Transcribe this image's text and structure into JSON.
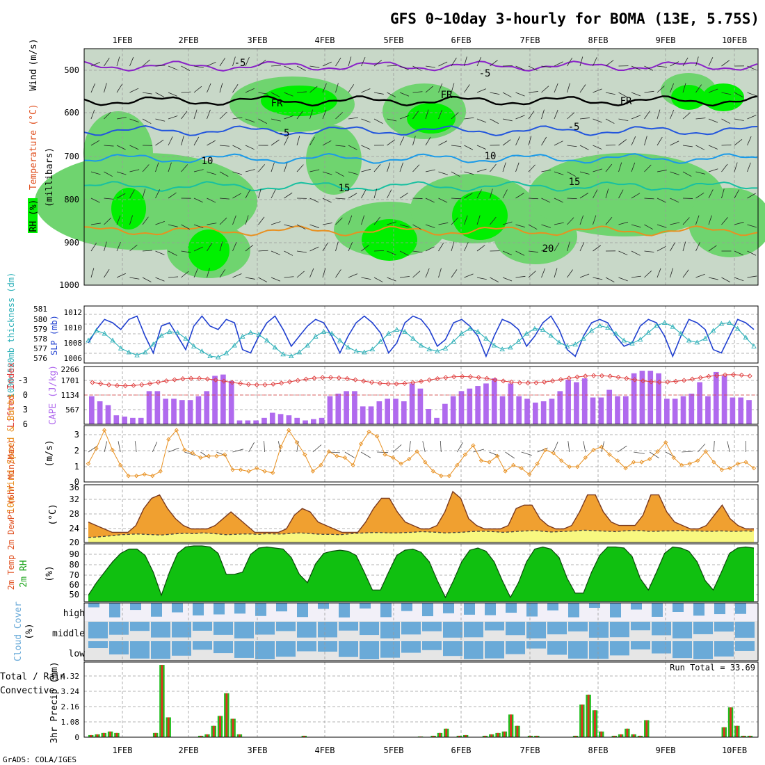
{
  "title": "GFS 0~10day 3-hourly for BOMA (13E, 5.75S)",
  "footer": "GrADS: COLA/IGES",
  "date_labels": [
    "1FEB",
    "2FEB",
    "3FEB",
    "4FEB",
    "5FEB",
    "6FEB",
    "7FEB",
    "8FEB",
    "9FEB",
    "10FEB"
  ],
  "panels": {
    "upper_air": {
      "ylabel_words": [
        "RH (%)",
        "Temperature",
        "(°C)",
        "Wind",
        "(m/s)"
      ],
      "ylabel_units": "(millibars)",
      "yticks": [
        "500",
        "600",
        "700",
        "800",
        "900",
        "1000"
      ],
      "contour_labels": [
        "-5",
        "-5",
        "FR",
        "FR",
        "FR",
        "-5",
        "-5",
        "10",
        "10",
        "15",
        "15",
        "20"
      ]
    },
    "slp": {
      "ylabel_left": "1000~500mb thickness (dm)",
      "ylabel_right": "SLP (mb)",
      "left_ticks": [
        "581",
        "580",
        "579",
        "578",
        "577",
        "576"
      ],
      "right_ticks": [
        "1012",
        "1010",
        "1008",
        "1006"
      ]
    },
    "cape": {
      "ylabel_left": "Lifted Index",
      "ylabel_right": "CAPE (J/kg)",
      "left_ticks": [
        "-3",
        "0",
        "3",
        "6"
      ],
      "right_ticks": [
        "2266",
        "1701",
        "1134",
        "567"
      ]
    },
    "wind10m": {
      "ylabel": "10m Wind Speed & Barbs",
      "units": "(m/s)",
      "yticks": [
        "3",
        "2",
        "1",
        "0"
      ]
    },
    "temp2m": {
      "ylabel": "2m Temp 2m DewPt (6hr Min/Max)",
      "units": "(°C)",
      "yticks": [
        "36",
        "32",
        "28",
        "24",
        "20"
      ]
    },
    "rh2m": {
      "ylabel": "2m RH",
      "units": "(%)",
      "yticks": [
        "90",
        "80",
        "70",
        "60",
        "50"
      ]
    },
    "cloud": {
      "ylabel": "Cloud Cover",
      "units": "(%)",
      "levels": [
        "high",
        "middle",
        "low"
      ]
    },
    "precip": {
      "ylabel_left": "Total / Rain",
      "ylabel_left2": "Convective",
      "ylabel_right": "3hr Precip (mm)",
      "yticks": [
        "4.32",
        "3.24",
        "2.16",
        "1.08",
        "0"
      ],
      "run_total": "Run Total = 33.69"
    }
  },
  "colors": {
    "rh_light": "#c8d8c8",
    "rh_mid": "#6fd46f",
    "rh_bright": "#00f000",
    "slp": "#1f3fd0",
    "thickness": "#2cb0b8",
    "cape": "#b06aee",
    "lifted_index": "#e04040",
    "wind": "#e89020",
    "temp_fill": "#f0a030",
    "dewpt_fill": "#f8f880",
    "rh_fill": "#10c010",
    "cloud": "#6aaad8",
    "precip_total": "#20c020",
    "precip_conv": "#e03020"
  },
  "chart_data": {
    "type": "line",
    "x": "3-hourly steps, 31 Jan 12Z to 10 Feb 12Z",
    "series": [
      {
        "name": "SLP (mb)",
        "values": [
          1008,
          1010,
          1011.5,
          1011,
          1010,
          1011.5,
          1012,
          1009,
          1006.5,
          1010.5,
          1011,
          1009,
          1007,
          1010.5,
          1012,
          1010.5,
          1010,
          1011.5,
          1011,
          1007,
          1006.5,
          1009,
          1011,
          1012,
          1010,
          1007.5,
          1009,
          1010.5,
          1011.5,
          1011,
          1009,
          1006.5,
          1009,
          1011,
          1012,
          1011,
          1009.5,
          1006.5,
          1008,
          1011,
          1012,
          1011.5,
          1010,
          1007.5,
          1008.5,
          1011,
          1011.5,
          1010.5,
          1009,
          1006,
          1009,
          1011.5,
          1011,
          1010,
          1007.5,
          1009,
          1011,
          1012,
          1010,
          1007,
          1006,
          1009,
          1011,
          1011.5,
          1011,
          1009,
          1007.5,
          1008,
          1010.5,
          1011.5,
          1011,
          1009,
          1006,
          1009,
          1011.5,
          1011,
          1010,
          1007,
          1006.5,
          1009,
          1011.5,
          1011,
          1010
        ]
      },
      {
        "name": "1000~500mb thickness (dm)",
        "values": [
          577.8,
          578.8,
          578.5,
          577.8,
          577,
          576.6,
          576.3,
          576.6,
          577.4,
          578.3,
          578.7,
          578.6,
          578,
          577.2,
          576.7,
          576.2,
          576.1,
          576.5,
          577.3,
          578.2,
          578.6,
          578.4,
          577.8,
          577.1,
          576.4,
          576.2,
          576.6,
          577.3,
          578.2,
          578.7,
          578.5,
          577.8,
          577.1,
          576.7,
          576.6,
          576.9,
          577.7,
          578.5,
          578.9,
          578.7,
          578,
          577.3,
          576.9,
          576.7,
          577,
          577.7,
          578.5,
          579,
          578.7,
          578,
          577.3,
          576.9,
          577.1,
          577.7,
          578.5,
          579,
          578.9,
          578.3,
          577.6,
          577.2,
          577.4,
          578,
          578.8,
          579.3,
          579.1,
          578.5,
          577.8,
          577.5,
          577.9,
          578.6,
          579.3,
          579.6,
          579.2,
          578.5,
          577.8,
          577.6,
          578,
          578.8,
          579.5,
          579.6,
          579,
          578.1,
          577.2
        ]
      },
      {
        "name": "CAPE (J/kg)",
        "values": [
          1100,
          900,
          750,
          350,
          300,
          250,
          250,
          1300,
          1300,
          1000,
          1000,
          950,
          950,
          1100,
          1300,
          1900,
          1950,
          1700,
          150,
          150,
          150,
          250,
          450,
          400,
          350,
          250,
          150,
          200,
          250,
          1100,
          1200,
          1300,
          1300,
          700,
          700,
          900,
          1000,
          1000,
          900,
          1600,
          1400,
          600,
          250,
          800,
          1100,
          1300,
          1400,
          1500,
          1600,
          1800,
          1100,
          1600,
          1100,
          1000,
          850,
          900,
          1000,
          1300,
          1750,
          1650,
          1800,
          1050,
          1050,
          1350,
          1100,
          1100,
          2000,
          2100,
          2100,
          2000,
          1000,
          1000,
          1100,
          1200,
          1650,
          1100,
          2050,
          1900,
          1050,
          1050,
          950
        ]
      },
      {
        "name": "10m Wind Speed (m/s)",
        "values": [
          1.2,
          2.2,
          3.4,
          2.1,
          1.1,
          0.4,
          0.4,
          0.5,
          0.4,
          0.7,
          2.8,
          3.4,
          2.1,
          1.9,
          1.6,
          1.7,
          1.7,
          1.8,
          0.8,
          0.8,
          0.7,
          0.9,
          0.7,
          0.6,
          2.3,
          3.4,
          2.6,
          1.8,
          0.7,
          1.1,
          2.0,
          1.7,
          1.6,
          1.1,
          2.5,
          3.3,
          3.0,
          1.8,
          1.6,
          1.2,
          1.5,
          2.0,
          1.3,
          0.7,
          0.4,
          0.4,
          1.1,
          1.8,
          2.4,
          1.4,
          1.3,
          1.7,
          0.7,
          1.1,
          0.9,
          0.5,
          1.2,
          2.1,
          1.9,
          1.4,
          1.0,
          1.0,
          1.6,
          2.1,
          2.3,
          1.8,
          1.4,
          0.9,
          1.3,
          1.3,
          1.5,
          2.0,
          2.6,
          1.6,
          1.1,
          1.2,
          1.4,
          2.0,
          1.3,
          0.8,
          0.9,
          1.2,
          1.3,
          0.9
        ]
      },
      {
        "name": "2m Temp (°C)",
        "values": [
          26,
          25,
          24,
          23,
          23,
          23,
          25,
          30,
          33,
          34,
          30,
          27,
          25,
          24,
          24,
          24,
          25,
          27,
          29,
          27,
          25,
          23,
          23,
          23,
          23,
          24,
          28,
          30,
          29,
          26,
          25,
          24,
          23,
          23,
          23,
          26,
          30,
          33,
          33,
          29,
          26,
          25,
          24,
          24,
          25,
          29,
          35,
          33,
          27,
          25,
          24,
          24,
          24,
          25,
          30,
          31,
          31,
          27,
          25,
          24,
          24,
          25,
          29,
          34,
          34,
          29,
          26,
          25,
          25,
          25,
          28,
          34,
          34,
          29,
          26,
          25,
          24,
          24,
          25,
          28,
          31,
          27,
          25,
          24,
          24
        ]
      },
      {
        "name": "2m DewPt (°C)",
        "values": [
          21.5,
          21.6,
          21.8,
          22,
          22.3,
          22.4,
          22.5,
          22.4,
          22.3,
          22.2,
          22.4,
          22.6,
          22.7,
          22.6,
          22.8,
          22.7,
          22.5,
          22.3,
          22.4,
          22.5,
          22.5,
          22.4,
          22.6,
          22.5,
          22.5,
          22.7,
          22.8,
          22.7,
          22.5,
          22.4,
          22.4,
          22.3,
          22.5,
          22.7,
          22.8,
          22.9,
          22.9,
          22.8,
          22.8,
          22.9,
          23,
          23.2,
          23.1,
          23,
          22.8,
          22.9,
          23,
          23.2,
          23.3,
          23.3,
          23.2,
          23,
          23.1,
          23.3,
          23.4,
          23.5,
          23.3,
          23.1,
          23.2,
          23.3,
          23.4,
          23.6,
          23.5,
          23.4,
          23.3,
          23.2,
          23.4,
          23.5,
          23.5,
          23.3,
          23.3,
          23.4,
          23.4,
          23.5,
          23.4,
          23.4,
          23.3,
          23.3,
          23.4,
          23.3,
          23.3,
          23.4,
          23.3
        ]
      },
      {
        "name": "2m RH (%)",
        "values": [
          48,
          60,
          70,
          80,
          88,
          92,
          92,
          86,
          70,
          48,
          70,
          88,
          94,
          95,
          95,
          94,
          88,
          68,
          68,
          70,
          87,
          93,
          94,
          93,
          92,
          84,
          68,
          60,
          78,
          88,
          90,
          91,
          90,
          86,
          70,
          53,
          53,
          70,
          86,
          91,
          92,
          89,
          80,
          62,
          46,
          62,
          80,
          91,
          93,
          90,
          80,
          62,
          46,
          60,
          80,
          92,
          94,
          92,
          84,
          64,
          50,
          50,
          70,
          86,
          94,
          94,
          93,
          85,
          64,
          53,
          70,
          88,
          94,
          93,
          90,
          80,
          62,
          53,
          70,
          88,
          93,
          94,
          93
        ]
      },
      {
        "name": "3hr Precip (mm)",
        "values": [
          0.15,
          0.2,
          0.3,
          0.4,
          0.3,
          0,
          0,
          0,
          0,
          0,
          0.3,
          5.1,
          1.4,
          0,
          0,
          0,
          0,
          0.1,
          0.2,
          0.8,
          1.5,
          3.1,
          1.3,
          0.2,
          0,
          0,
          0,
          0,
          0,
          0,
          0,
          0,
          0,
          0.1,
          0,
          0,
          0,
          0,
          0,
          0,
          0,
          0,
          0,
          0,
          0,
          0,
          0,
          0,
          0,
          0,
          0,
          0.05,
          0,
          0.1,
          0.3,
          0.6,
          0,
          0.1,
          0.15,
          0,
          0,
          0.1,
          0.2,
          0.3,
          0.4,
          1.6,
          0.8,
          0,
          0.1,
          0.1,
          0,
          0,
          0,
          0,
          0,
          0.1,
          2.3,
          3.0,
          1.9,
          0.4,
          0,
          0.1,
          0.2,
          0.6,
          0.2,
          0.1,
          1.2,
          0,
          0,
          0,
          0,
          0,
          0,
          0,
          0,
          0,
          0,
          0,
          0.7,
          2.1,
          0.8,
          0.1,
          0.1
        ]
      }
    ]
  }
}
